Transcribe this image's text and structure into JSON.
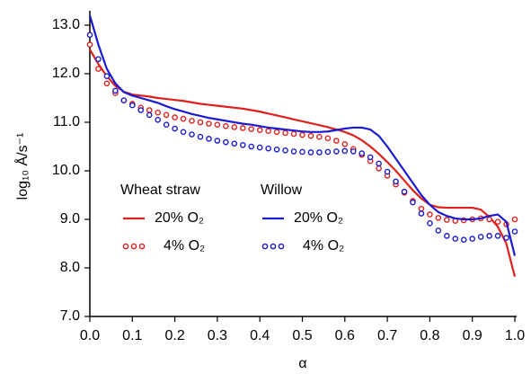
{
  "chart_data": {
    "type": "line",
    "x_label": "α",
    "y_label": "log₁₀ Å/s⁻¹",
    "xlim": [
      0,
      1
    ],
    "ylim": [
      7,
      13.25
    ],
    "xticks": [
      {
        "value": 0,
        "label": "0.0"
      },
      0.1,
      0.2,
      0.3,
      0.4,
      0.5,
      0.6,
      0.7,
      0.8,
      0.9,
      {
        "value": 1,
        "label": "1.0"
      }
    ],
    "yticks": [
      {
        "value": 7,
        "label": "7.0"
      },
      {
        "value": 8,
        "label": "8.0"
      },
      {
        "value": 9,
        "label": "9.0"
      },
      {
        "value": 10,
        "label": "10.0"
      },
      {
        "value": 11,
        "label": "11.0"
      },
      {
        "value": 12,
        "label": "12.0"
      },
      {
        "value": 13,
        "label": "13.0"
      }
    ],
    "legend_titles": [
      {
        "text": "Wheat straw",
        "color": "#e0201c"
      },
      {
        "text": "Willow",
        "color": "#1a1ad0"
      }
    ],
    "x": [
      0,
      0.02,
      0.04,
      0.06,
      0.08,
      0.1,
      0.12,
      0.14,
      0.16,
      0.18,
      0.2,
      0.22,
      0.24,
      0.26,
      0.28,
      0.3,
      0.32,
      0.34,
      0.36,
      0.38,
      0.4,
      0.42,
      0.44,
      0.46,
      0.48,
      0.5,
      0.52,
      0.54,
      0.56,
      0.58,
      0.6,
      0.62,
      0.64,
      0.66,
      0.68,
      0.7,
      0.72,
      0.74,
      0.76,
      0.78,
      0.8,
      0.82,
      0.84,
      0.86,
      0.88,
      0.9,
      0.92,
      0.94,
      0.96,
      0.98,
      1
    ],
    "series": [
      {
        "name": "20% O₂",
        "group": 0,
        "style": "line",
        "color": "#e0201c",
        "values": [
          12.5,
          12.2,
          11.95,
          11.75,
          11.63,
          11.57,
          11.55,
          11.53,
          11.5,
          11.48,
          11.46,
          11.44,
          11.41,
          11.38,
          11.36,
          11.34,
          11.32,
          11.3,
          11.28,
          11.25,
          11.22,
          11.18,
          11.14,
          11.1,
          11.06,
          11.02,
          10.98,
          10.94,
          10.9,
          10.85,
          10.8,
          10.73,
          10.63,
          10.5,
          10.35,
          10.18,
          10.0,
          9.8,
          9.6,
          9.43,
          9.3,
          9.25,
          9.24,
          9.24,
          9.24,
          9.24,
          9.2,
          9.05,
          8.85,
          8.5,
          7.82
        ]
      },
      {
        "name": "4% O₂",
        "group": 0,
        "style": "dots",
        "color": "#e0201c",
        "values": [
          12.6,
          12.1,
          11.8,
          11.6,
          11.45,
          11.38,
          11.3,
          11.25,
          11.2,
          11.15,
          11.1,
          11.07,
          11.03,
          11.0,
          10.97,
          10.95,
          10.92,
          10.9,
          10.88,
          10.86,
          10.84,
          10.82,
          10.8,
          10.78,
          10.76,
          10.74,
          10.72,
          10.7,
          10.67,
          10.62,
          10.55,
          10.45,
          10.33,
          10.2,
          10.05,
          9.9,
          9.72,
          9.55,
          9.38,
          9.22,
          9.1,
          9.03,
          8.99,
          8.97,
          8.98,
          9.0,
          9.02,
          9.0,
          8.95,
          8.9,
          9.0
        ]
      },
      {
        "name": "20% O₂",
        "group": 1,
        "style": "line",
        "color": "#1a1ad0",
        "values": [
          13.2,
          12.6,
          12.1,
          11.8,
          11.62,
          11.55,
          11.5,
          11.45,
          11.4,
          11.33,
          11.27,
          11.22,
          11.17,
          11.13,
          11.09,
          11.06,
          11.03,
          11.0,
          10.97,
          10.95,
          10.92,
          10.89,
          10.87,
          10.85,
          10.83,
          10.81,
          10.8,
          10.8,
          10.81,
          10.84,
          10.87,
          10.89,
          10.89,
          10.85,
          10.72,
          10.5,
          10.25,
          10.0,
          9.75,
          9.5,
          9.3,
          9.15,
          9.07,
          9.02,
          9.0,
          9.0,
          9.02,
          9.07,
          9.1,
          8.95,
          8.25
        ]
      },
      {
        "name": "4% O₂",
        "group": 1,
        "style": "dots",
        "color": "#1a1ad0",
        "values": [
          12.8,
          12.3,
          11.95,
          11.65,
          11.45,
          11.35,
          11.25,
          11.15,
          11.05,
          10.95,
          10.87,
          10.8,
          10.75,
          10.7,
          10.66,
          10.62,
          10.59,
          10.56,
          10.53,
          10.5,
          10.48,
          10.46,
          10.44,
          10.42,
          10.4,
          10.39,
          10.38,
          10.38,
          10.39,
          10.4,
          10.41,
          10.4,
          10.36,
          10.28,
          10.15,
          9.98,
          9.78,
          9.57,
          9.35,
          9.12,
          8.92,
          8.77,
          8.66,
          8.6,
          8.58,
          8.6,
          8.64,
          8.66,
          8.66,
          8.62,
          8.75
        ]
      }
    ]
  }
}
